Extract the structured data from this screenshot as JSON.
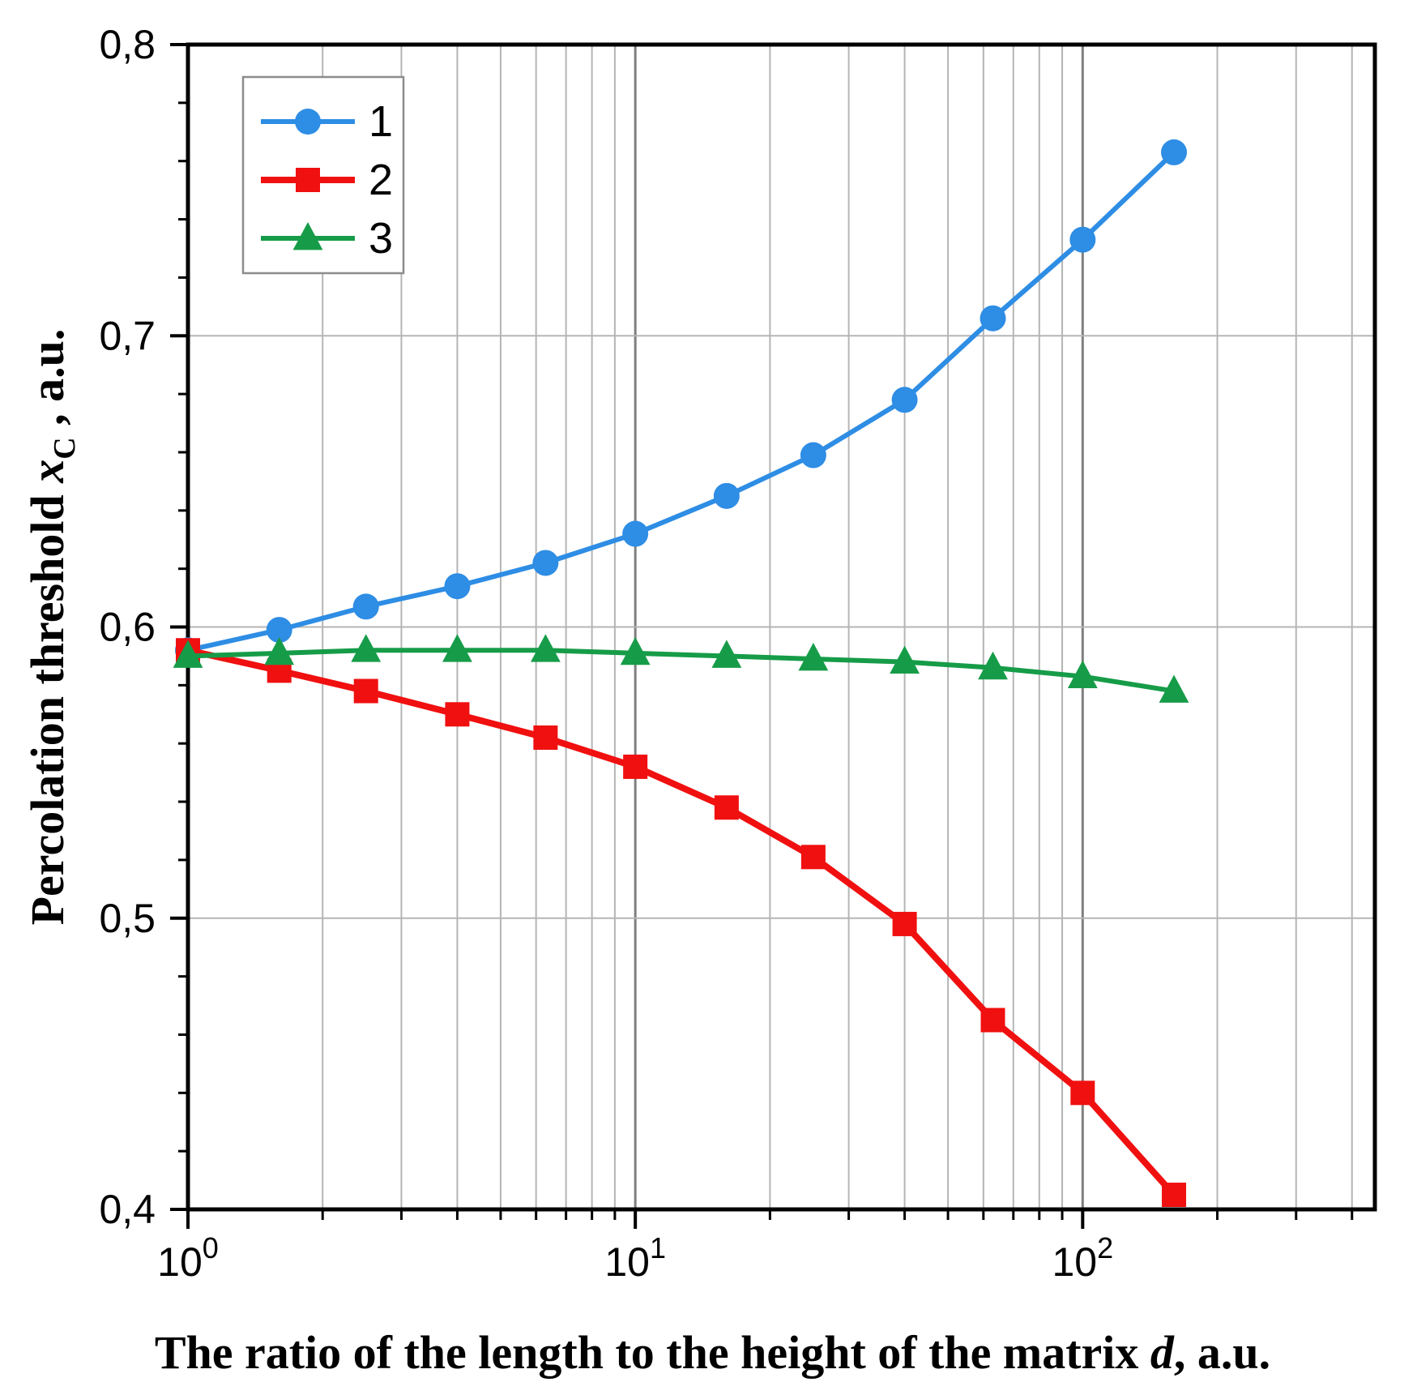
{
  "figure": {
    "background": "#ffffff",
    "x_axis_label": {
      "pre": "The ratio of the length to the height of the matrix ",
      "italic": "d",
      "post": ", a.u."
    },
    "y_axis_label": {
      "pre": "Percolation threshold ",
      "italic": "x",
      "sub": "C",
      "post": " , a.u."
    }
  },
  "chart_data": {
    "type": "line",
    "x_scale": "log",
    "xlim": [
      1,
      450
    ],
    "ylim": [
      0.4,
      0.8
    ],
    "grid": true,
    "legend_position": "top-left",
    "x_ticks": [
      {
        "value": 1,
        "base": "10",
        "exp": "0"
      },
      {
        "value": 10,
        "base": "10",
        "exp": "1"
      },
      {
        "value": 100,
        "base": "10",
        "exp": "2"
      }
    ],
    "y_ticks": [
      {
        "value": 0.4,
        "label": "0,4"
      },
      {
        "value": 0.5,
        "label": "0,5"
      },
      {
        "value": 0.6,
        "label": "0,6"
      },
      {
        "value": 0.7,
        "label": "0,7"
      },
      {
        "value": 0.8,
        "label": "0,8"
      }
    ],
    "y_minor_step": 0.02,
    "x": [
      1,
      1.6,
      2.5,
      4,
      6.3,
      10,
      16,
      25,
      40,
      63,
      100,
      160
    ],
    "series": [
      {
        "name": "1",
        "marker": "circle",
        "color": "#2e8de4",
        "line_width": 6,
        "marker_size": 16,
        "values": [
          0.592,
          0.599,
          0.607,
          0.614,
          0.622,
          0.632,
          0.645,
          0.659,
          0.678,
          0.706,
          0.733,
          0.763
        ]
      },
      {
        "name": "2",
        "marker": "square",
        "color": "#f01010",
        "line_width": 8,
        "marker_size": 15,
        "values": [
          0.592,
          0.585,
          0.578,
          0.57,
          0.562,
          0.552,
          0.538,
          0.521,
          0.498,
          0.465,
          0.44,
          0.405
        ]
      },
      {
        "name": "3",
        "marker": "triangle",
        "color": "#169c48",
        "line_width": 6,
        "marker_size": 16,
        "values": [
          0.59,
          0.591,
          0.592,
          0.592,
          0.592,
          0.591,
          0.59,
          0.589,
          0.588,
          0.586,
          0.583,
          0.578
        ]
      }
    ],
    "legend_entries": [
      "1",
      "2",
      "3"
    ],
    "colors": {
      "grid_minor": "#b5b5b5",
      "grid_major": "#7f7f7f",
      "axis": "#000000",
      "legend_border": "#8c8c8c"
    }
  }
}
